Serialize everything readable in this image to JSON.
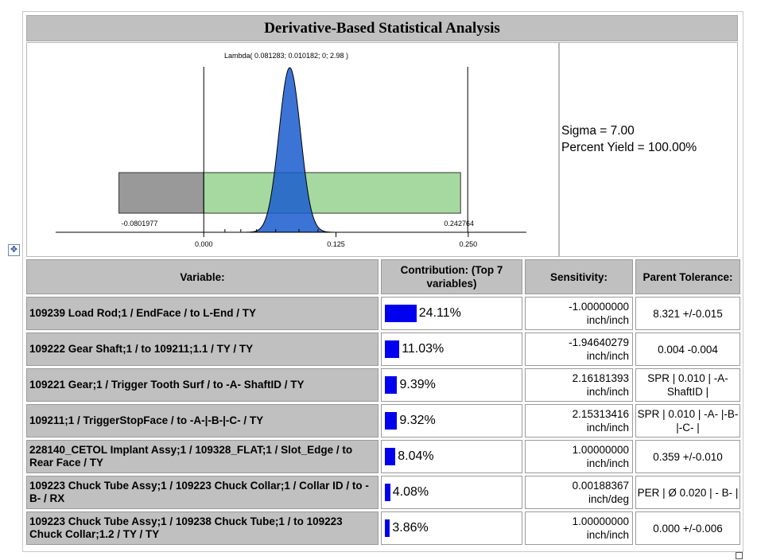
{
  "title": "Derivative-Based Statistical  Analysis",
  "stats": {
    "sigma": "Sigma = 7.00",
    "yield": "Percent Yield =  100.00%"
  },
  "chart_data": {
    "type": "area",
    "distribution_label": "Lambda( 0.081283; 0.010182; 0; 2.98 )",
    "distribution": {
      "mean": 0.081283,
      "std": 0.010182,
      "skew": 0,
      "kurtosis": 2.98
    },
    "lower_limit": -0.0801977,
    "upper_limit": 0.242764,
    "lower_limit_label": "-0.0801977",
    "upper_limit_label": "0.242764",
    "nominal": 0.0,
    "xlim": [
      -0.14,
      0.305
    ],
    "ticks": [
      {
        "value": 0.0,
        "label": "0.000"
      },
      {
        "value": 0.125,
        "label": "0.125"
      },
      {
        "value": 0.25,
        "label": "0.250"
      }
    ],
    "minor_ticks": [
      0.02,
      0.035,
      0.05,
      0.068,
      0.09,
      0.108
    ],
    "colors": {
      "curve": "#1a5ccf",
      "below_nominal": "#999999",
      "above_nominal": "#a6d9a0"
    }
  },
  "table": {
    "headers": {
      "variable": "Variable:",
      "contribution": "Contribution: (Top 7 variables)",
      "sensitivity": "Sensitivity:",
      "tolerance": "Parent Tolerance:"
    },
    "bar_color": "#0000ee",
    "rows": [
      {
        "variable": "109239 Load Rod;1 / EndFace / to L-End / TY",
        "contribution": 24.11,
        "contribution_label": "24.11%",
        "sens_value": "-1.00000000",
        "sens_unit": "inch/inch",
        "tolerance": "8.321 +/-0.015"
      },
      {
        "variable": "109222 Gear Shaft;1 / to 109211;1.1  / TY / TY",
        "contribution": 11.03,
        "contribution_label": "11.03%",
        "sens_value": "-1.94640279",
        "sens_unit": "inch/inch",
        "tolerance": "0.004 -0.004"
      },
      {
        "variable": "109221 Gear;1 / Trigger Tooth Surf / to -A- ShaftID / TY",
        "contribution": 9.39,
        "contribution_label": "9.39%",
        "sens_value": "2.16181393",
        "sens_unit": "inch/inch",
        "tolerance": "SPR | 0.010 | -A- ShaftID |"
      },
      {
        "variable": "109211;1 / TriggerStopFace  / to -A-|-B-|-C- / TY",
        "contribution": 9.32,
        "contribution_label": "9.32%",
        "sens_value": "2.15313416",
        "sens_unit": "inch/inch",
        "tolerance": "SPR | 0.010 | -A- |-B-|-C- |"
      },
      {
        "variable": "228140_CETOL Implant Assy;1  / 109328_FLAT;1  / Slot_Edge / to Rear Face / TY",
        "contribution": 8.04,
        "contribution_label": "8.04%",
        "sens_value": "1.00000000",
        "sens_unit": "inch/inch",
        "tolerance": "0.359 +/-0.010"
      },
      {
        "variable": "109223 Chuck Tube Assy;1 / 109223 Chuck Collar;1  / Collar ID / to -B- / RX",
        "contribution": 4.08,
        "contribution_label": "4.08%",
        "sens_value": "0.00188367",
        "sens_unit": "inch/deg",
        "tolerance": "PER | Ø 0.020 | - B- |"
      },
      {
        "variable": "109223 Chuck Tube Assy;1 / 109238 Chuck Tube;1 / to 109223 Chuck Collar;1.2  / TY / TY",
        "contribution": 3.86,
        "contribution_label": "3.86%",
        "sens_value": "1.00000000",
        "sens_unit": "inch/inch",
        "tolerance": "0.000 +/-0.006"
      }
    ]
  }
}
